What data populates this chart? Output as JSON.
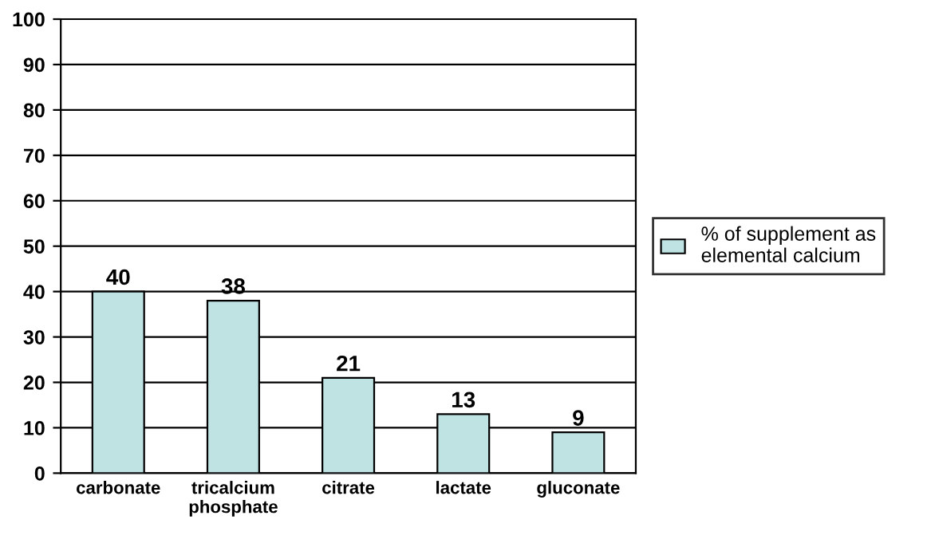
{
  "chart_data": {
    "type": "bar",
    "categories": [
      "carbonate",
      "tricalcium\nphosphate",
      "citrate",
      "lactate",
      "gluconate"
    ],
    "series": [
      {
        "name": "% of supplement as\nelemental calcium",
        "color": "#bfe3e3",
        "values": [
          40,
          38,
          21,
          13,
          9
        ]
      }
    ],
    "ylim": [
      0,
      100
    ],
    "yticks": [
      0,
      10,
      20,
      30,
      40,
      50,
      60,
      70,
      80,
      90,
      100
    ],
    "grid": "y",
    "legend": "right",
    "data_labels": true
  }
}
